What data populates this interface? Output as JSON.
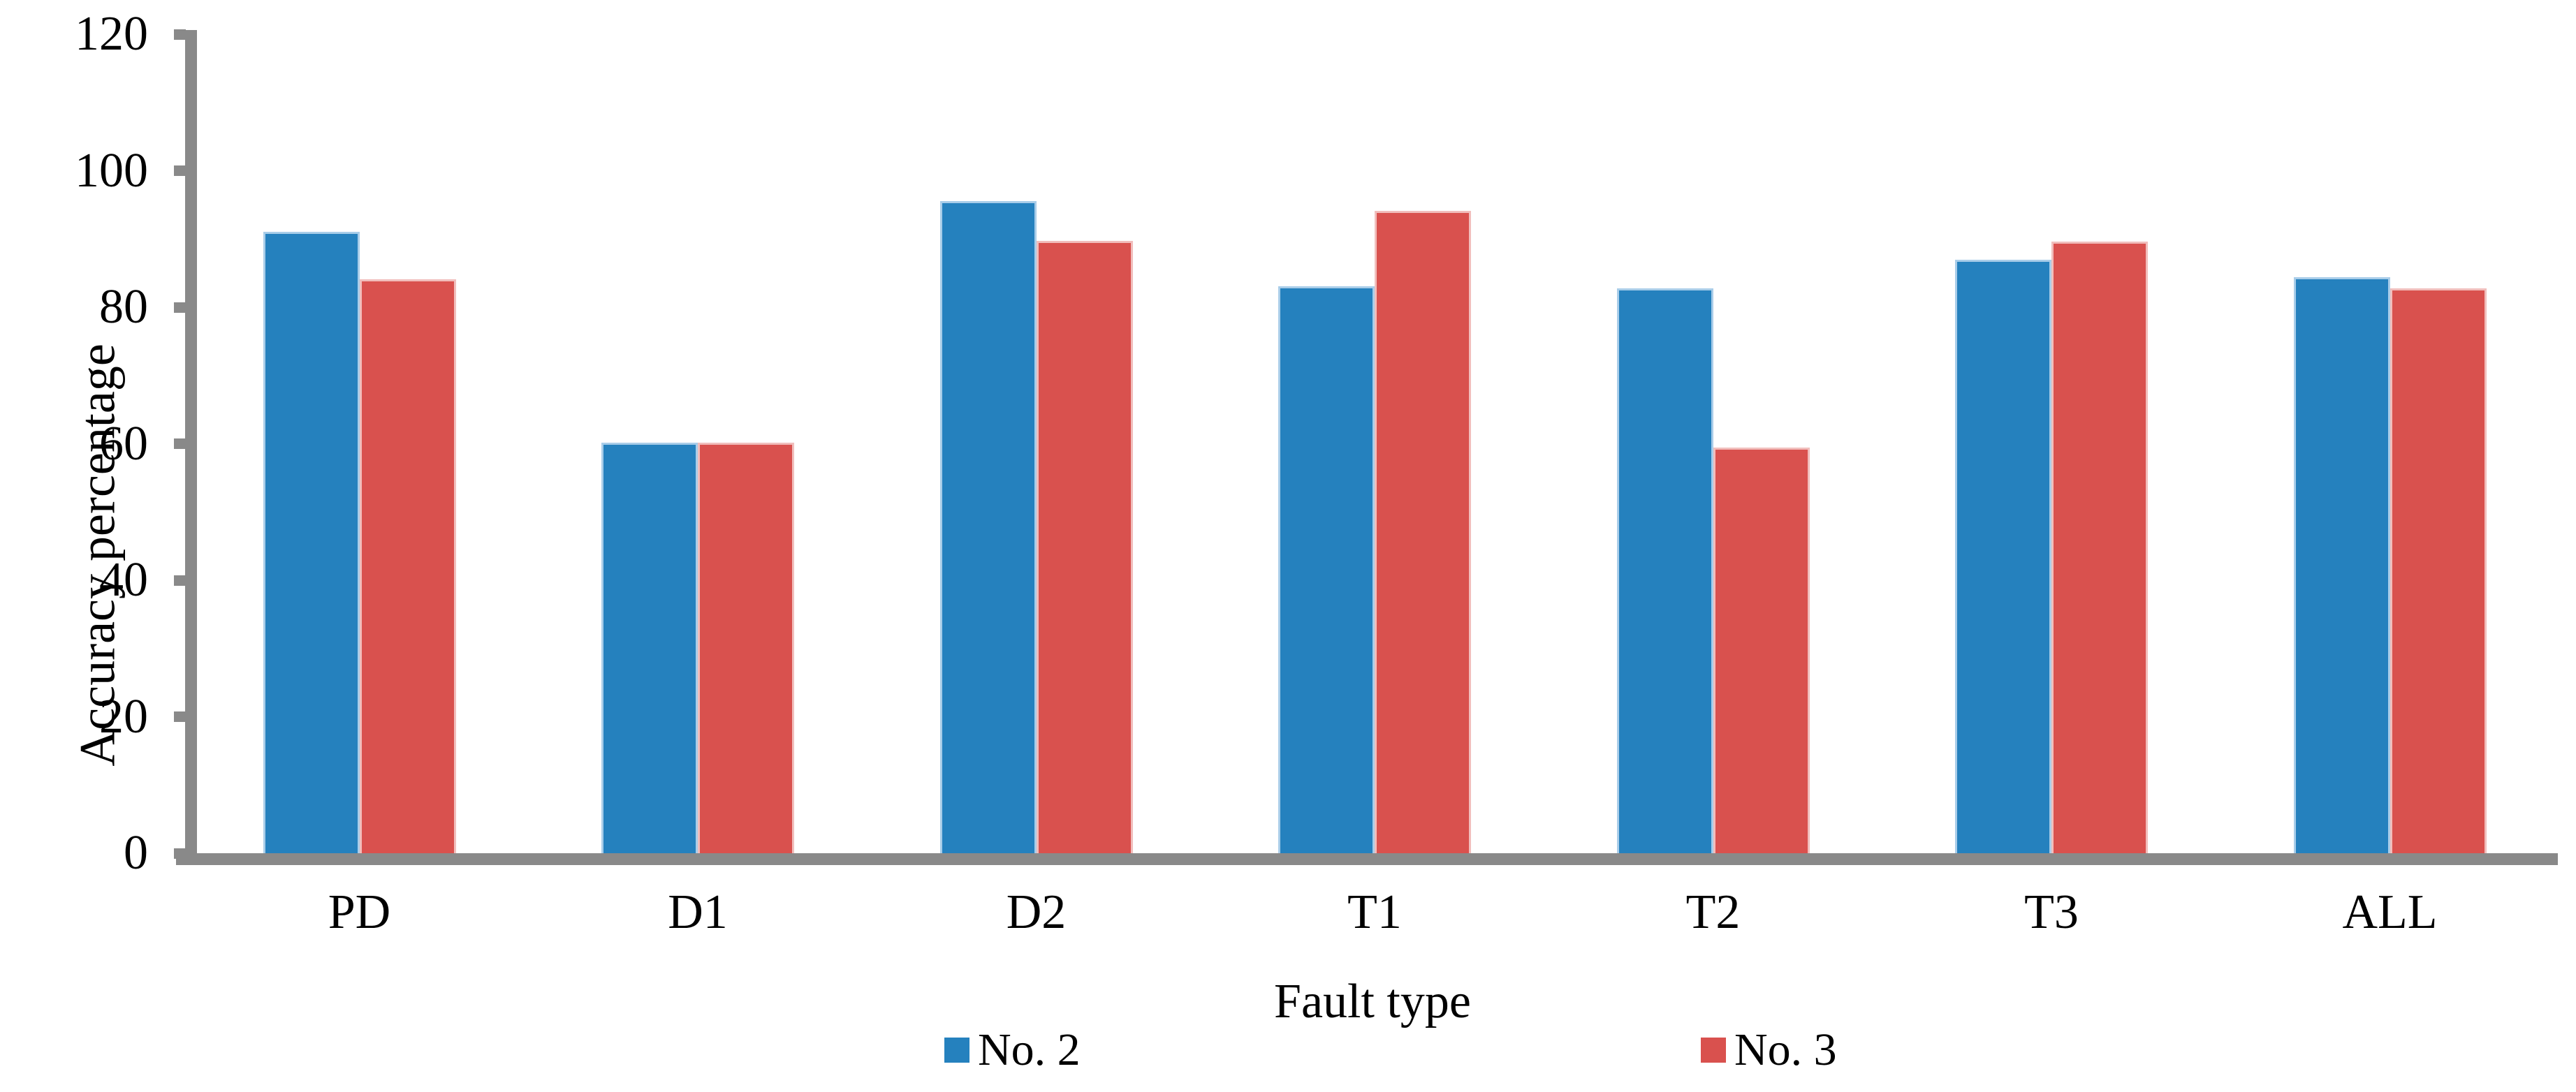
{
  "chart_data": {
    "type": "bar",
    "title": "",
    "categories": [
      "PD",
      "D1",
      "D2",
      "T1",
      "T2",
      "T3",
      "ALL"
    ],
    "series": [
      {
        "name": "No. 2",
        "color": "#2581BE",
        "edge_color": "#A9CDE9",
        "values": [
          91.0,
          60.2,
          95.5,
          83.1,
          82.8,
          87.0,
          84.4
        ]
      },
      {
        "name": "No. 3",
        "color": "#D9514E",
        "edge_color": "#F1BEBC",
        "values": [
          84.1,
          60.2,
          89.7,
          94.1,
          59.4,
          89.6,
          82.8
        ]
      }
    ],
    "xlabel": "Fault type",
    "ylabel": "Accuracy percentage",
    "ylim": [
      0,
      120
    ],
    "ytick_interval": 20,
    "yticks": [
      "0",
      "20",
      "40",
      "60",
      "80",
      "100",
      "120"
    ],
    "grid": false,
    "legend_position": "bottom",
    "axis_color": "#898989",
    "text_color": "#000000",
    "background_color": "#ffffff"
  }
}
